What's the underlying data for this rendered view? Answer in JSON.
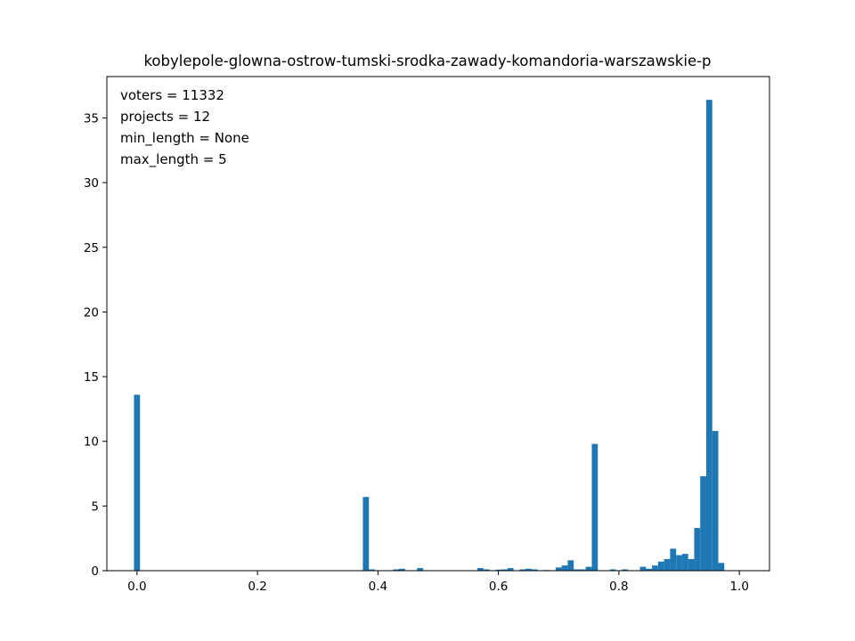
{
  "chart_data": {
    "type": "bar",
    "title": "kobylepole-glowna-ostrow-tumski-srodka-zawady-komandoria-warszawskie-p",
    "xlabel": "",
    "ylabel": "",
    "xlim": [
      -0.05,
      1.05
    ],
    "ylim": [
      0,
      38.2
    ],
    "bar_color": "#1f77b4",
    "bin_width": 0.01,
    "xticks": [
      0.0,
      0.2,
      0.4,
      0.6,
      0.8,
      1.0
    ],
    "xtick_labels": [
      "0.0",
      "0.2",
      "0.4",
      "0.6",
      "0.8",
      "1.0"
    ],
    "yticks": [
      0,
      5,
      10,
      15,
      20,
      25,
      30,
      35
    ],
    "ytick_labels": [
      "0",
      "5",
      "10",
      "15",
      "20",
      "25",
      "30",
      "35"
    ],
    "annotations": [
      "voters = 11332",
      "projects = 12",
      "min_length = None",
      "max_length = 5"
    ],
    "bins": [
      {
        "x": 0.0,
        "value": 13.6
      },
      {
        "x": 0.38,
        "value": 5.7
      },
      {
        "x": 0.39,
        "value": 0.1
      },
      {
        "x": 0.43,
        "value": 0.1
      },
      {
        "x": 0.44,
        "value": 0.15
      },
      {
        "x": 0.47,
        "value": 0.2
      },
      {
        "x": 0.57,
        "value": 0.2
      },
      {
        "x": 0.58,
        "value": 0.1
      },
      {
        "x": 0.6,
        "value": 0.08
      },
      {
        "x": 0.61,
        "value": 0.1
      },
      {
        "x": 0.62,
        "value": 0.2
      },
      {
        "x": 0.64,
        "value": 0.1
      },
      {
        "x": 0.65,
        "value": 0.15
      },
      {
        "x": 0.66,
        "value": 0.1
      },
      {
        "x": 0.68,
        "value": 0.05
      },
      {
        "x": 0.7,
        "value": 0.25
      },
      {
        "x": 0.71,
        "value": 0.4
      },
      {
        "x": 0.72,
        "value": 0.8
      },
      {
        "x": 0.73,
        "value": 0.1
      },
      {
        "x": 0.74,
        "value": 0.1
      },
      {
        "x": 0.75,
        "value": 0.3
      },
      {
        "x": 0.76,
        "value": 9.8
      },
      {
        "x": 0.79,
        "value": 0.1
      },
      {
        "x": 0.81,
        "value": 0.1
      },
      {
        "x": 0.84,
        "value": 0.3
      },
      {
        "x": 0.85,
        "value": 0.15
      },
      {
        "x": 0.86,
        "value": 0.4
      },
      {
        "x": 0.87,
        "value": 0.7
      },
      {
        "x": 0.88,
        "value": 0.9
      },
      {
        "x": 0.89,
        "value": 1.7
      },
      {
        "x": 0.9,
        "value": 1.2
      },
      {
        "x": 0.91,
        "value": 1.3
      },
      {
        "x": 0.92,
        "value": 0.9
      },
      {
        "x": 0.93,
        "value": 3.3
      },
      {
        "x": 0.94,
        "value": 7.3
      },
      {
        "x": 0.95,
        "value": 36.4
      },
      {
        "x": 0.96,
        "value": 10.8
      },
      {
        "x": 0.97,
        "value": 0.6
      }
    ]
  }
}
